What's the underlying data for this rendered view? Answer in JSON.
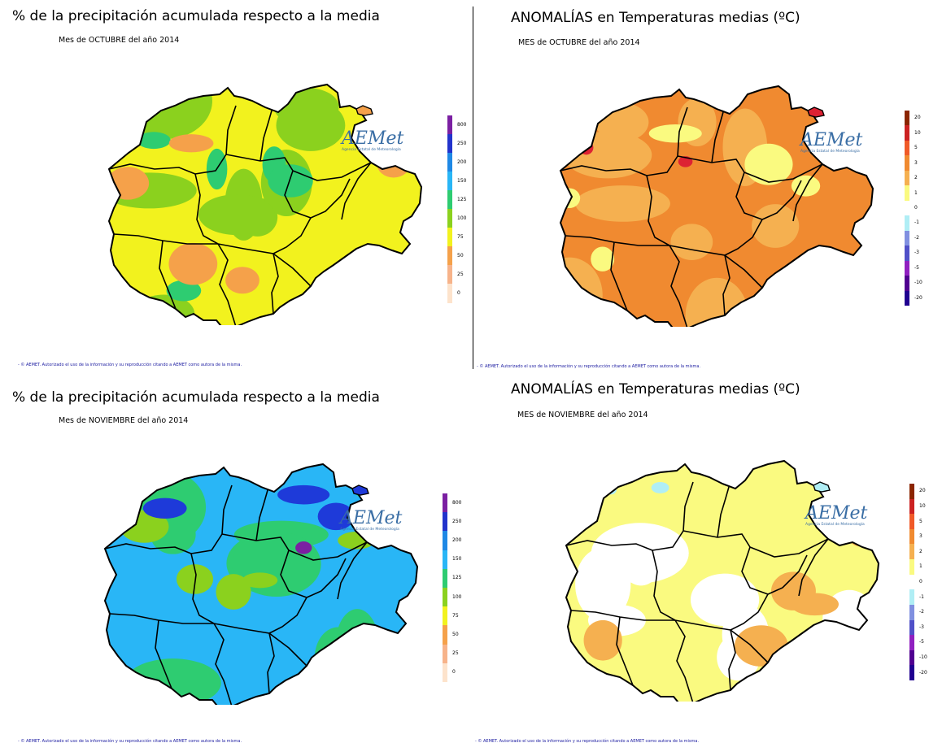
{
  "panels": [
    {
      "id": "precip-oct",
      "title": "% de la precipitación acumulada respecto a la media",
      "subtitle": "Mes de OCTUBRE del año 2014",
      "credit": "- © AEMET. Autorizado el uso de la información y su reproducción citando a AEMET como autora de la misma.",
      "legend": [
        "800",
        "250",
        "200",
        "150",
        "125",
        "100",
        "75",
        "50",
        "25",
        "0"
      ],
      "legend_colors": [
        "#7b1fa2",
        "#2233cc",
        "#1e88e5",
        "#29b6f6",
        "#2ecc71",
        "#8bd11e",
        "#f2f21e",
        "#f5a14a",
        "#f7b38a",
        "#fde3cc"
      ],
      "base_color": "#f2f21e",
      "patches": [
        "#8bd11e",
        "#2ecc71",
        "#f5a14a",
        "#29b6f6"
      ]
    },
    {
      "id": "temp-oct",
      "title": "ANOMALÍAS en Temperaturas medias (ºC)",
      "subtitle": "MES de OCTUBRE del año 2014",
      "credit": "- © AEMET. Autorizado el uso de la información y su reproducción citando a AEMET como autora de la misma.",
      "legend": [
        "20",
        "10",
        "5",
        "3",
        "2",
        "1",
        "0",
        "-1",
        "-2",
        "-3",
        "-5",
        "-10",
        "-20"
      ],
      "legend_colors": [
        "#8b2500",
        "#cc2222",
        "#f05a28",
        "#f08a30",
        "#f5b050",
        "#fafa80",
        "#ffffff",
        "#b0eef5",
        "#8090e0",
        "#5050c8",
        "#9020c0",
        "#500090",
        "#200090"
      ],
      "base_color": "#f08a30",
      "patches": [
        "#f5b050",
        "#fafa80",
        "#dd2233"
      ]
    },
    {
      "id": "precip-nov",
      "title": "% de la precipitación acumulada respecto a la media",
      "subtitle": "Mes de NOVIEMBRE del año 2014",
      "credit": "- © AEMET. Autorizado el uso de la información y su reproducción citando a AEMET como autora de la misma.",
      "legend": [
        "800",
        "250",
        "200",
        "150",
        "125",
        "100",
        "75",
        "50",
        "25",
        "0"
      ],
      "legend_colors": [
        "#7b1fa2",
        "#2233cc",
        "#1e88e5",
        "#29b6f6",
        "#2ecc71",
        "#8bd11e",
        "#f2f21e",
        "#f5a14a",
        "#f7b38a",
        "#fde3cc"
      ],
      "base_color": "#29b6f6",
      "patches": [
        "#2ecc71",
        "#8bd11e",
        "#1e3ad9",
        "#7b1fa2"
      ]
    },
    {
      "id": "temp-nov",
      "title": "ANOMALÍAS en Temperaturas medias (ºC)",
      "subtitle": "MES de NOVIEMBRE del año 2014",
      "credit": "- © AEMET. Autorizado el uso de la información y su reproducción citando a AEMET como autora de la misma.",
      "legend": [
        "20",
        "10",
        "5",
        "3",
        "2",
        "1",
        "0",
        "-1",
        "-2",
        "-3",
        "-5",
        "-10",
        "-20"
      ],
      "legend_colors": [
        "#8b2500",
        "#cc2222",
        "#f05a28",
        "#f08a30",
        "#f5b050",
        "#fafa80",
        "#ffffff",
        "#b0eef5",
        "#8090e0",
        "#5050c8",
        "#9020c0",
        "#500090",
        "#200090"
      ],
      "base_color": "#fafa80",
      "patches": [
        "#ffffff",
        "#f5b050",
        "#b0eef5"
      ]
    }
  ],
  "logo": {
    "name": "AEMet",
    "subtitle": "Agencia Estatal de Meteorología"
  }
}
